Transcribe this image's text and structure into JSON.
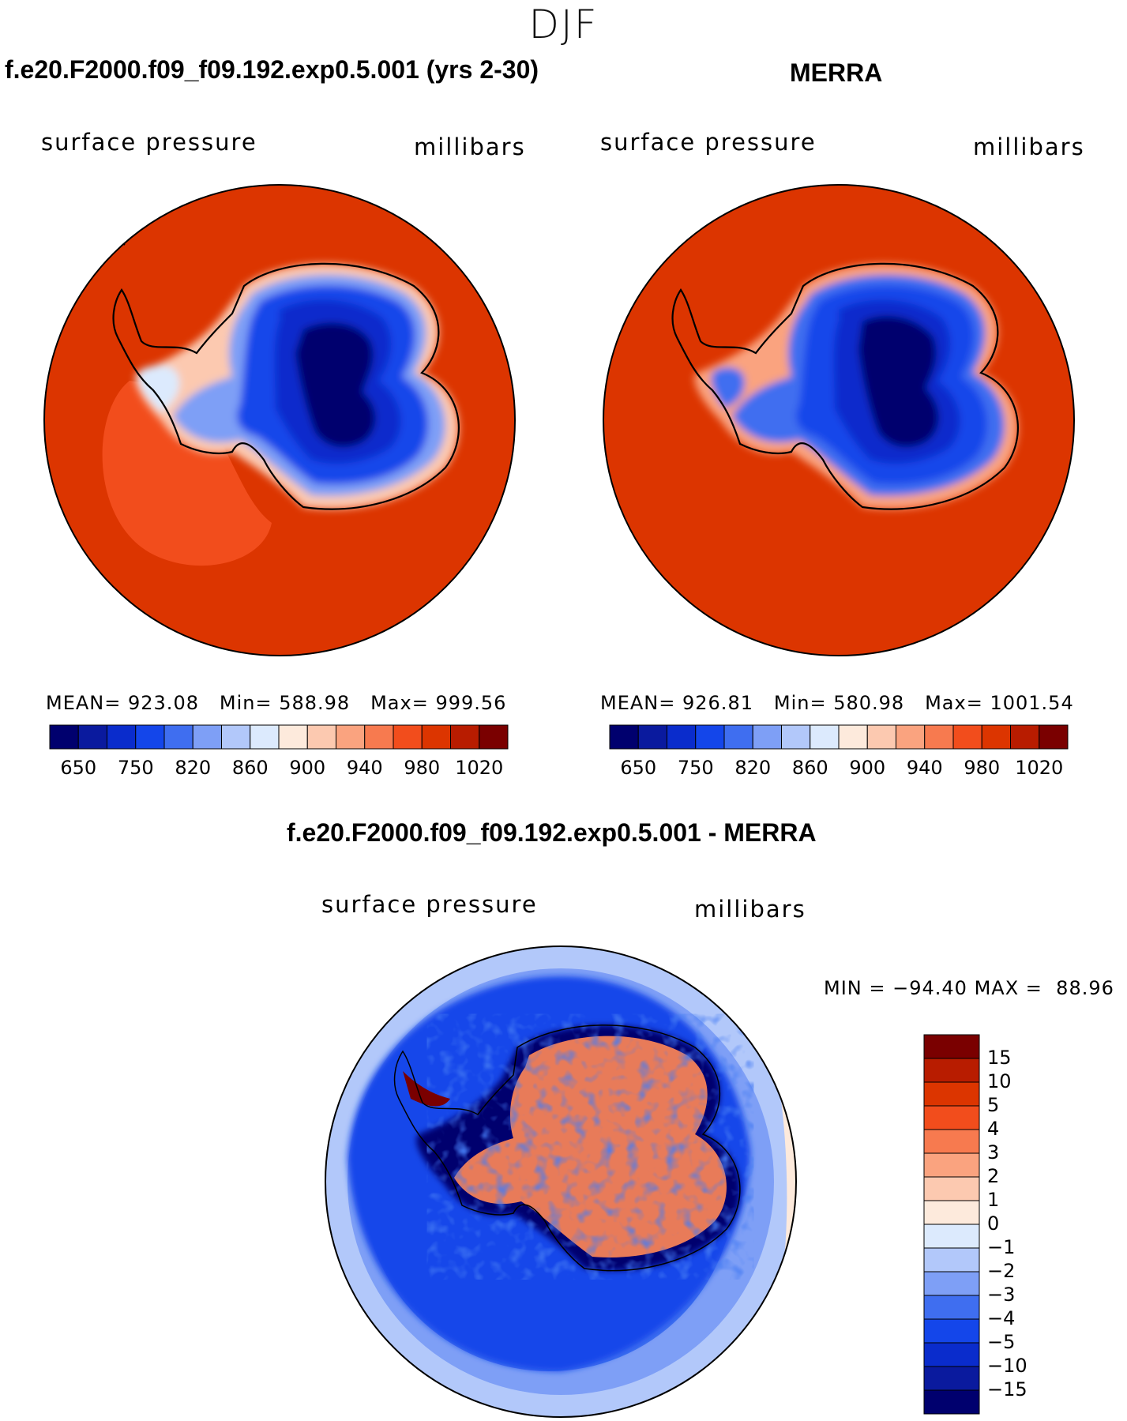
{
  "figure": {
    "season": "DJF",
    "panels": [
      {
        "title": "f.e20.F2000.f09_f09.192.exp0.5.001 (yrs 2-30)",
        "variable": "surface pressure",
        "units": "millibars",
        "stats": {
          "mean_label": "MEAN=",
          "mean": "923.08",
          "min_label": "Min=",
          "min": "588.98",
          "max_label": "Max=",
          "max": "999.56"
        }
      },
      {
        "title": "MERRA",
        "variable": "surface pressure",
        "units": "millibars",
        "stats": {
          "mean_label": "MEAN=",
          "mean": "926.81",
          "min_label": "Min=",
          "min": "580.98",
          "max_label": "Max=",
          "max": "1001.54"
        }
      }
    ],
    "diff_panel": {
      "title": "f.e20.F2000.f09_f09.192.exp0.5.001 - MERRA",
      "variable": "surface pressure",
      "units": "millibars",
      "stats": {
        "min_label": "MIN =",
        "min": "−94.40",
        "max_label": "MAX =",
        "max": "88.96"
      }
    }
  },
  "chart_data": [
    {
      "type": "map",
      "projection": "south polar stereographic",
      "title": "f.e20.F2000.f09_f09.192.exp0.5.001 (yrs 2-30)",
      "variable": "surface pressure",
      "units": "millibars",
      "mean": 923.08,
      "min": 588.98,
      "max": 999.56,
      "colorbar": {
        "levels": [
          650,
          700,
          750,
          800,
          820,
          840,
          860,
          880,
          900,
          920,
          940,
          960,
          980,
          1000,
          1020
        ],
        "tick_labels": [
          "650",
          "750",
          "820",
          "860",
          "900",
          "940",
          "980",
          "1020"
        ],
        "colors": [
          "#00006e",
          "#0a1a9e",
          "#0a2ccc",
          "#1446ea",
          "#3f6ef0",
          "#7e9ff6",
          "#b2c8fa",
          "#dceafd",
          "#fdeadc",
          "#fcc9b0",
          "#faa37f",
          "#f77a4f",
          "#f24d1c",
          "#dc3500",
          "#b81c00",
          "#7a0000"
        ]
      }
    },
    {
      "type": "map",
      "projection": "south polar stereographic",
      "title": "MERRA",
      "variable": "surface pressure",
      "units": "millibars",
      "mean": 926.81,
      "min": 580.98,
      "max": 1001.54,
      "colorbar": {
        "levels": [
          650,
          700,
          750,
          800,
          820,
          840,
          860,
          880,
          900,
          920,
          940,
          960,
          980,
          1000,
          1020
        ],
        "tick_labels": [
          "650",
          "750",
          "820",
          "860",
          "900",
          "940",
          "980",
          "1020"
        ],
        "colors": [
          "#00006e",
          "#0a1a9e",
          "#0a2ccc",
          "#1446ea",
          "#3f6ef0",
          "#7e9ff6",
          "#b2c8fa",
          "#dceafd",
          "#fdeadc",
          "#fcc9b0",
          "#faa37f",
          "#f77a4f",
          "#f24d1c",
          "#dc3500",
          "#b81c00",
          "#7a0000"
        ]
      }
    },
    {
      "type": "map",
      "projection": "south polar stereographic",
      "title": "f.e20.F2000.f09_f09.192.exp0.5.001 - MERRA",
      "variable": "surface pressure",
      "units": "millibars",
      "min": -94.4,
      "max": 88.96,
      "colorbar": {
        "levels": [
          15,
          10,
          5,
          4,
          3,
          2,
          1,
          0,
          -1,
          -2,
          -3,
          -4,
          -5,
          -10,
          -15
        ],
        "tick_labels": [
          "15",
          "10",
          "5",
          "4",
          "3",
          "2",
          "1",
          "0",
          "−1",
          "−2",
          "−3",
          "−4",
          "−5",
          "−10",
          "−15"
        ],
        "colors": [
          "#7a0000",
          "#b81c00",
          "#dc3500",
          "#f24d1c",
          "#f77a4f",
          "#faa37f",
          "#fcc9b0",
          "#fdeadc",
          "#dceafd",
          "#b2c8fa",
          "#7e9ff6",
          "#3f6ef0",
          "#1446ea",
          "#0a2ccc",
          "#0a1a9e",
          "#00006e"
        ]
      }
    }
  ]
}
